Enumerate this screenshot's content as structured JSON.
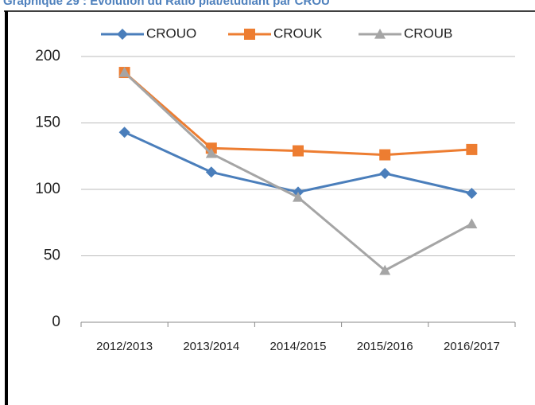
{
  "chart_data": {
    "type": "line",
    "title": "Graphique 29 : Evolution du Ratio  plat/etudiant par CROU",
    "categories": [
      "2012/2013",
      "2013/2014",
      "2014/2015",
      "2015/2016",
      "2016/2017"
    ],
    "series": [
      {
        "name": "CROUO",
        "color": "#4a7ebb",
        "marker": "diamond",
        "values": [
          143,
          113,
          98,
          112,
          97
        ]
      },
      {
        "name": "CROUK",
        "color": "#ed7d31",
        "marker": "square",
        "values": [
          188,
          131,
          129,
          126,
          130
        ]
      },
      {
        "name": "CROUB",
        "color": "#a5a5a5",
        "marker": "triangle",
        "values": [
          188,
          127,
          94,
          39,
          74
        ]
      }
    ],
    "ylim": [
      0,
      200
    ],
    "yticks": [
      0,
      50,
      100,
      150,
      200
    ],
    "grid": true,
    "legend": "top"
  }
}
